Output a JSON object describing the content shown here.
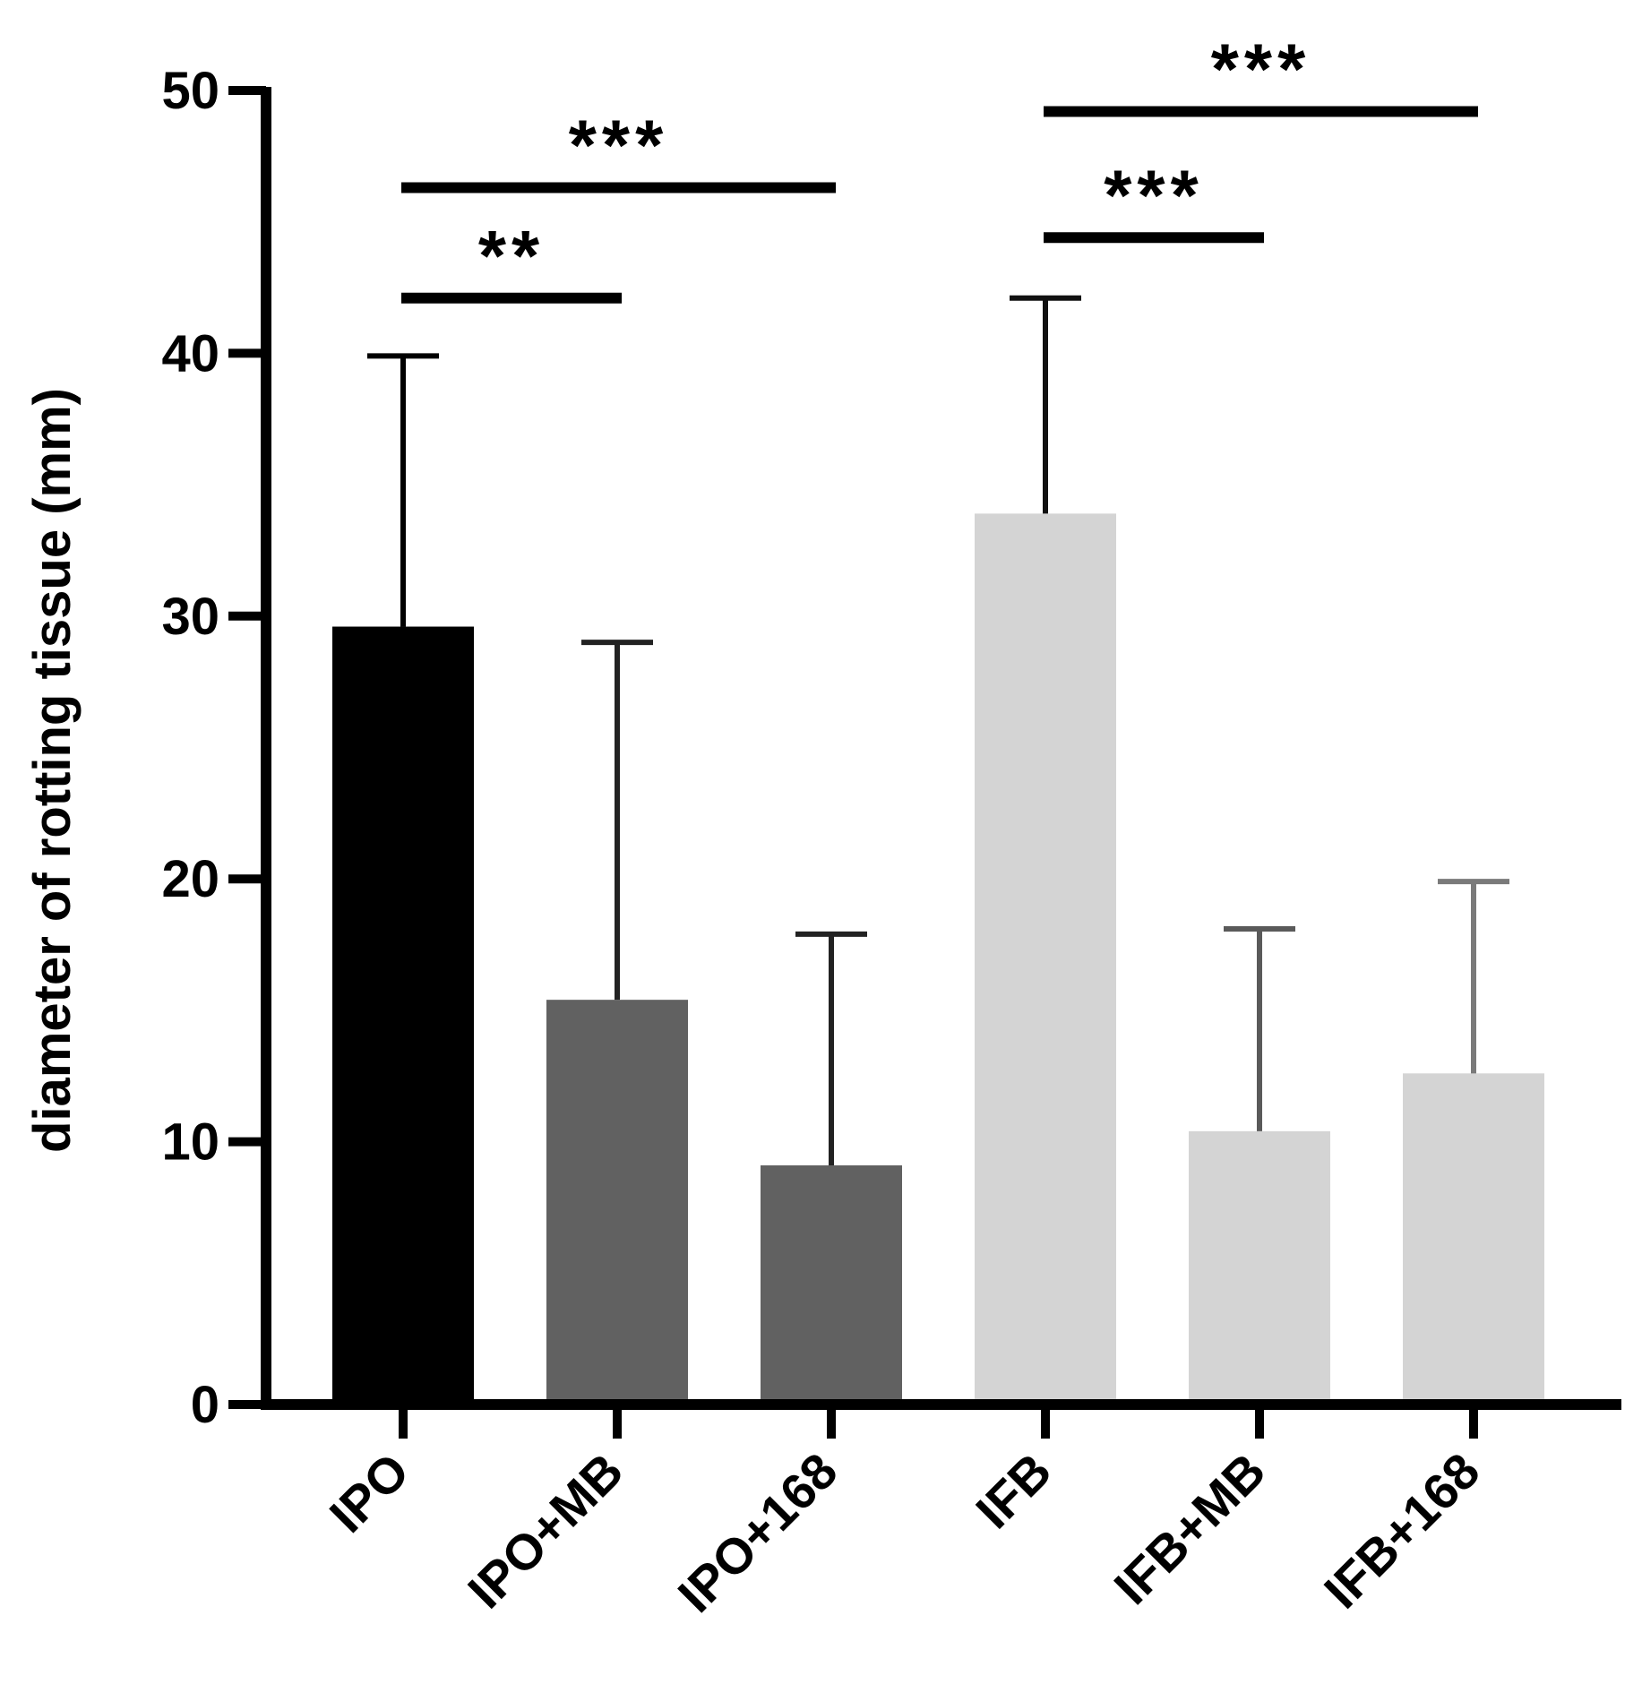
{
  "chart_data": {
    "type": "bar",
    "title": "",
    "xlabel": "",
    "ylabel": "diameter of rotting tissue (mm)",
    "ylim": [
      0,
      50
    ],
    "yticks": [
      0,
      10,
      20,
      30,
      40,
      50
    ],
    "ytick_labels": [
      "0",
      "10",
      "20",
      "30",
      "40",
      "50"
    ],
    "categories": [
      "IPO",
      "IPO+MB",
      "IPO+168",
      "IFB",
      "IFB+MB",
      "IFB+168"
    ],
    "values": [
      29.6,
      15.4,
      9.1,
      33.9,
      10.4,
      12.6
    ],
    "errors": [
      10.3,
      13.6,
      8.8,
      8.2,
      7.7,
      7.3
    ],
    "bar_colors": [
      "#000000",
      "#616161",
      "#616161",
      "#d4d4d4",
      "#d4d4d4",
      "#d4d4d4"
    ],
    "error_colors": [
      "#000000",
      "#222222",
      "#222222",
      "#111111",
      "#5a5a5a",
      "#7a7a7a"
    ],
    "significance": [
      {
        "from": 0,
        "to": 1,
        "y": 42.1,
        "label": "**"
      },
      {
        "from": 0,
        "to": 2,
        "y": 46.3,
        "label": "***"
      },
      {
        "from": 3,
        "to": 4,
        "y": 44.4,
        "label": "***"
      },
      {
        "from": 3,
        "to": 5,
        "y": 49.2,
        "label": "***"
      }
    ],
    "grid": false,
    "legend": "none"
  }
}
